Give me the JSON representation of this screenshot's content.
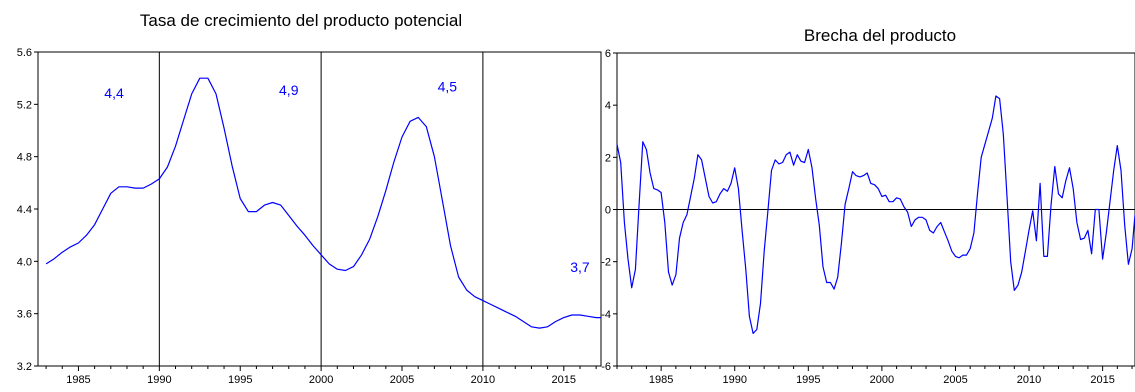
{
  "colors": {
    "series": "#0000ff",
    "axis": "#000000",
    "background": "#ffffff"
  },
  "chart_data": [
    {
      "type": "line",
      "title": "Tasa de crecimiento del producto potencial",
      "xlabel": "",
      "ylabel": "",
      "xlim": [
        1982.5,
        2017.3
      ],
      "ylim": [
        3.2,
        5.6
      ],
      "x_ticks": [
        1985,
        1990,
        1995,
        2000,
        2005,
        2010,
        2015
      ],
      "x_tick_labels": [
        "1985",
        "1990",
        "1995",
        "2000",
        "2005",
        "2010",
        "2015"
      ],
      "y_ticks": [
        3.2,
        3.6,
        4.0,
        4.4,
        4.8,
        5.2,
        5.6
      ],
      "y_tick_labels": [
        "3.2",
        "3.6",
        "4.0",
        "4.4",
        "4.8",
        "5.2",
        "5.6"
      ],
      "vertical_lines": [
        1990,
        2000,
        2010
      ],
      "annotations": [
        {
          "text": "4,4",
          "x": 1987.2,
          "y": 5.25
        },
        {
          "text": "4,9",
          "x": 1998.0,
          "y": 5.27
        },
        {
          "text": "4,5",
          "x": 2007.8,
          "y": 5.3
        },
        {
          "text": "3,7",
          "x": 2016.0,
          "y": 3.92
        }
      ],
      "series": [
        {
          "x": [
            1983.0,
            1983.5,
            1984.0,
            1984.5,
            1985.0,
            1985.5,
            1986.0,
            1986.5,
            1987.0,
            1987.5,
            1988.0,
            1988.5,
            1989.0,
            1989.5,
            1990.0,
            1990.5,
            1991.0,
            1991.5,
            1992.0,
            1992.5,
            1993.0,
            1993.5,
            1994.0,
            1994.5,
            1995.0,
            1995.5,
            1996.0,
            1996.5,
            1997.0,
            1997.5,
            1998.0,
            1998.5,
            1999.0,
            1999.5,
            2000.0,
            2000.5,
            2001.0,
            2001.5,
            2002.0,
            2002.5,
            2003.0,
            2003.5,
            2004.0,
            2004.5,
            2005.0,
            2005.5,
            2006.0,
            2006.5,
            2007.0,
            2007.5,
            2008.0,
            2008.5,
            2009.0,
            2009.5,
            2010.0,
            2010.5,
            2011.0,
            2011.5,
            2012.0,
            2012.5,
            2013.0,
            2013.5,
            2014.0,
            2014.5,
            2015.0,
            2015.5,
            2016.0,
            2016.5,
            2017.0,
            2017.3
          ],
          "values": [
            3.98,
            4.02,
            4.07,
            4.11,
            4.14,
            4.2,
            4.28,
            4.4,
            4.52,
            4.57,
            4.57,
            4.56,
            4.56,
            4.59,
            4.63,
            4.72,
            4.88,
            5.08,
            5.28,
            5.4,
            5.4,
            5.28,
            5.02,
            4.73,
            4.48,
            4.38,
            4.38,
            4.43,
            4.45,
            4.43,
            4.35,
            4.27,
            4.2,
            4.12,
            4.05,
            3.98,
            3.94,
            3.93,
            3.96,
            4.05,
            4.17,
            4.34,
            4.54,
            4.76,
            4.95,
            5.07,
            5.1,
            5.03,
            4.8,
            4.46,
            4.12,
            3.88,
            3.78,
            3.73,
            3.7,
            3.67,
            3.64,
            3.61,
            3.58,
            3.54,
            3.5,
            3.49,
            3.5,
            3.54,
            3.57,
            3.59,
            3.59,
            3.58,
            3.57,
            3.57
          ]
        }
      ]
    },
    {
      "type": "line",
      "title": "Brecha del producto",
      "xlabel": "",
      "ylabel": "",
      "xlim": [
        1982.0,
        2017.2
      ],
      "ylim": [
        -6,
        6
      ],
      "x_ticks": [
        1985,
        1990,
        1995,
        2000,
        2005,
        2010,
        2015
      ],
      "x_tick_labels": [
        "1985",
        "1990",
        "1995",
        "2000",
        "2005",
        "2010",
        "2015"
      ],
      "y_ticks": [
        -6,
        -4,
        -2,
        0,
        2,
        4,
        6
      ],
      "y_tick_labels": [
        "-6",
        "-4",
        "-2",
        "0",
        "2",
        "4",
        "6"
      ],
      "zero_line": true,
      "series": [
        {
          "x": [
            1982.0,
            1982.25,
            1982.5,
            1982.75,
            1983.0,
            1983.25,
            1983.5,
            1983.75,
            1984.0,
            1984.25,
            1984.5,
            1984.75,
            1985.0,
            1985.25,
            1985.5,
            1985.75,
            1986.0,
            1986.25,
            1986.5,
            1986.75,
            1987.0,
            1987.25,
            1987.5,
            1987.75,
            1988.0,
            1988.25,
            1988.5,
            1988.75,
            1989.0,
            1989.25,
            1989.5,
            1989.75,
            1990.0,
            1990.25,
            1990.5,
            1990.75,
            1991.0,
            1991.25,
            1991.5,
            1991.75,
            1992.0,
            1992.25,
            1992.5,
            1992.75,
            1993.0,
            1993.25,
            1993.5,
            1993.75,
            1994.0,
            1994.25,
            1994.5,
            1994.75,
            1995.0,
            1995.25,
            1995.5,
            1995.75,
            1996.0,
            1996.25,
            1996.5,
            1996.75,
            1997.0,
            1997.25,
            1997.5,
            1997.75,
            1998.0,
            1998.25,
            1998.5,
            1998.75,
            1999.0,
            1999.25,
            1999.5,
            1999.75,
            2000.0,
            2000.25,
            2000.5,
            2000.75,
            2001.0,
            2001.25,
            2001.5,
            2001.75,
            2002.0,
            2002.25,
            2002.5,
            2002.75,
            2003.0,
            2003.25,
            2003.5,
            2003.75,
            2004.0,
            2004.25,
            2004.5,
            2004.75,
            2005.0,
            2005.25,
            2005.5,
            2005.75,
            2006.0,
            2006.25,
            2006.5,
            2006.75,
            2007.0,
            2007.25,
            2007.5,
            2007.75,
            2008.0,
            2008.25,
            2008.5,
            2008.75,
            2009.0,
            2009.25,
            2009.5,
            2009.75,
            2010.0,
            2010.25,
            2010.5,
            2010.75,
            2011.0,
            2011.25,
            2011.5,
            2011.75,
            2012.0,
            2012.25,
            2012.5,
            2012.75,
            2013.0,
            2013.25,
            2013.5,
            2013.75,
            2014.0,
            2014.25,
            2014.5,
            2014.75,
            2015.0,
            2015.25,
            2015.5,
            2015.75,
            2016.0,
            2016.25,
            2016.5,
            2016.75,
            2017.0,
            2017.2
          ],
          "values": [
            2.5,
            1.8,
            -0.5,
            -1.9,
            -3.0,
            -2.3,
            0.2,
            2.6,
            2.3,
            1.4,
            0.8,
            0.75,
            0.65,
            -0.5,
            -2.4,
            -2.9,
            -2.5,
            -1.1,
            -0.5,
            -0.2,
            0.5,
            1.2,
            2.1,
            1.9,
            1.2,
            0.5,
            0.25,
            0.3,
            0.6,
            0.8,
            0.7,
            1.0,
            1.6,
            0.8,
            -0.8,
            -2.3,
            -4.1,
            -4.75,
            -4.6,
            -3.6,
            -1.6,
            -0.1,
            1.5,
            1.9,
            1.75,
            1.8,
            2.1,
            2.2,
            1.7,
            2.1,
            1.85,
            1.8,
            2.3,
            1.6,
            0.4,
            -0.6,
            -2.2,
            -2.8,
            -2.8,
            -3.05,
            -2.6,
            -1.3,
            0.2,
            0.8,
            1.45,
            1.3,
            1.25,
            1.3,
            1.4,
            1.0,
            0.95,
            0.8,
            0.5,
            0.55,
            0.3,
            0.3,
            0.45,
            0.4,
            0.1,
            -0.1,
            -0.65,
            -0.4,
            -0.3,
            -0.3,
            -0.4,
            -0.8,
            -0.9,
            -0.65,
            -0.5,
            -0.85,
            -1.2,
            -1.6,
            -1.8,
            -1.85,
            -1.75,
            -1.75,
            -1.5,
            -0.9,
            0.6,
            2.0,
            2.5,
            3.0,
            3.5,
            4.35,
            4.25,
            2.9,
            0.5,
            -2.0,
            -3.1,
            -2.9,
            -2.4,
            -1.6,
            -0.8,
            -0.05,
            -1.2,
            1.0,
            -1.8,
            -1.8,
            0.2,
            1.65,
            0.6,
            0.45,
            1.1,
            1.6,
            0.8,
            -0.5,
            -1.15,
            -1.1,
            -0.8,
            -1.7,
            0.0,
            0.0,
            -1.9,
            -0.9,
            0.3,
            1.5,
            2.45,
            1.5,
            -0.6,
            -2.1,
            -1.5,
            -0.2
          ]
        }
      ]
    }
  ]
}
